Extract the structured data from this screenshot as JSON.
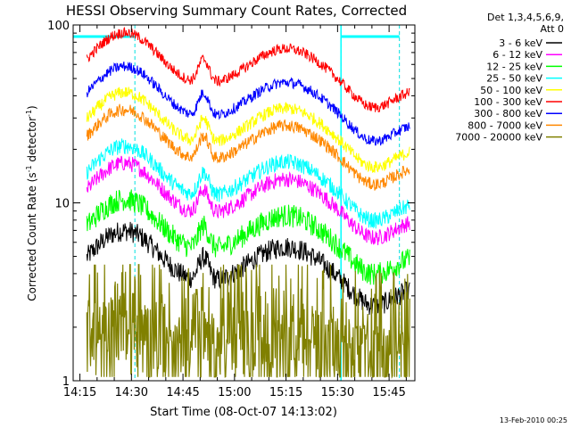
{
  "chart_data": {
    "type": "line",
    "title": "HESSI Observing Summary Count Rates, Corrected",
    "xlabel": "Start Time (08-Oct-07 14:13:02)",
    "ylabel_main": "Corrected Count Rate (s",
    "ylabel_sup1": "-1",
    "ylabel_mid": " detector",
    "ylabel_sup2": "-1",
    "ylabel_end": ")",
    "yscale": "log",
    "ylim": [
      1,
      100
    ],
    "xlim": [
      "14:13:02",
      "15:52:30"
    ],
    "xticks": [
      "14:15",
      "14:30",
      "14:45",
      "15:00",
      "15:15",
      "15:30",
      "15:45"
    ],
    "yticks": [
      "1",
      "10",
      "100"
    ],
    "legend_header": [
      "Det 1,3,4,5,6,9,",
      "Att 0"
    ],
    "legend_position": "right",
    "night_markers": [
      "14:31",
      "15:31",
      "15:48"
    ],
    "footer_date": "13-Feb-2010 00:25",
    "series": [
      {
        "name": "3 - 6 keV",
        "color": "#000000",
        "level": 5.0,
        "noise": 0.06
      },
      {
        "name": "6 - 12 keV",
        "color": "#ff00ff",
        "level": 12.0,
        "noise": 0.045
      },
      {
        "name": "12 - 25 keV",
        "color": "#00ff00",
        "level": 7.5,
        "noise": 0.065
      },
      {
        "name": "25 - 50 keV",
        "color": "#00ffff",
        "level": 15.0,
        "noise": 0.045
      },
      {
        "name": "50 - 100 keV",
        "color": "#ffff00",
        "level": 30.0,
        "noise": 0.035
      },
      {
        "name": "100 - 300 keV",
        "color": "#ff0000",
        "level": 65.0,
        "noise": 0.03
      },
      {
        "name": "300 - 800 keV",
        "color": "#0000ff",
        "level": 42.0,
        "noise": 0.03
      },
      {
        "name": "800 - 7000 keV",
        "color": "#ff8800",
        "level": 24.0,
        "noise": 0.035
      },
      {
        "name": "7000 - 20000 keV",
        "color": "#808000",
        "level": 1.5,
        "noise": 0.25
      }
    ]
  }
}
